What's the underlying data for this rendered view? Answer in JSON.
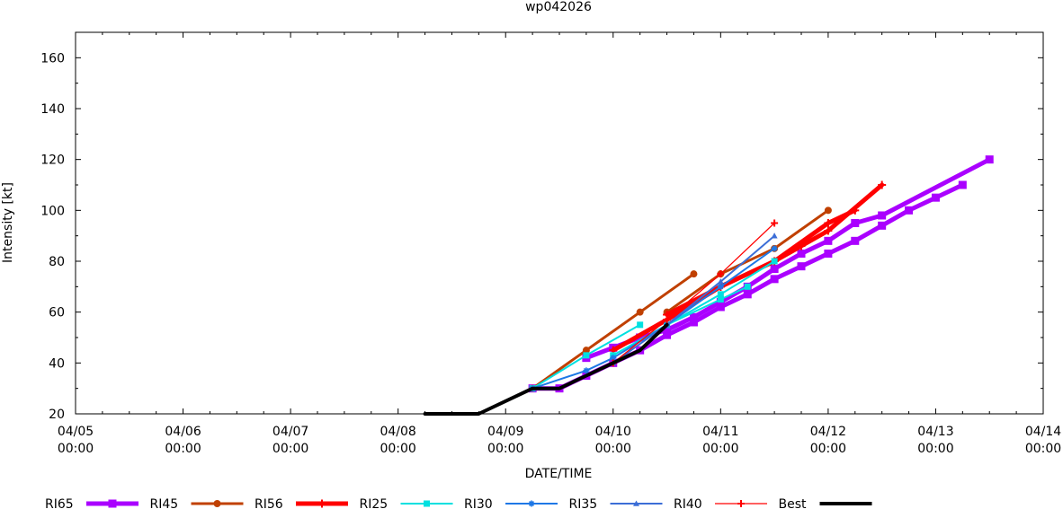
{
  "chart_data": {
    "type": "line",
    "title": "wp042026",
    "xlabel": "DATE/TIME",
    "ylabel": "Intensity [kt]",
    "grid": false,
    "legend_position": "bottom",
    "x_unit": "days since 04/05 00:00",
    "xlim": [
      0,
      9
    ],
    "ylim": [
      20,
      170
    ],
    "x_ticks": [
      {
        "x": 0,
        "date": "04/05",
        "time": "00:00"
      },
      {
        "x": 1,
        "date": "04/06",
        "time": "00:00"
      },
      {
        "x": 2,
        "date": "04/07",
        "time": "00:00"
      },
      {
        "x": 3,
        "date": "04/08",
        "time": "00:00"
      },
      {
        "x": 4,
        "date": "04/09",
        "time": "00:00"
      },
      {
        "x": 5,
        "date": "04/10",
        "time": "00:00"
      },
      {
        "x": 6,
        "date": "04/11",
        "time": "00:00"
      },
      {
        "x": 7,
        "date": "04/12",
        "time": "00:00"
      },
      {
        "x": 8,
        "date": "04/13",
        "time": "00:00"
      },
      {
        "x": 9,
        "date": "04/14",
        "time": "00:00"
      }
    ],
    "y_ticks": [
      20,
      40,
      60,
      80,
      100,
      120,
      140,
      160
    ],
    "series": [
      {
        "name": "RI65",
        "color": "#aa00ff",
        "marker": "square",
        "weight": "heavy",
        "lines": [
          [
            [
              4.25,
              30
            ],
            [
              4.5,
              30
            ],
            [
              4.75,
              35
            ],
            [
              5.0,
              40
            ],
            [
              5.25,
              45
            ],
            [
              5.5,
              51
            ],
            [
              5.75,
              56
            ],
            [
              6.0,
              62
            ],
            [
              6.25,
              67
            ],
            [
              6.5,
              73
            ],
            [
              6.75,
              78
            ],
            [
              7.0,
              83
            ],
            [
              7.25,
              88
            ],
            [
              7.5,
              94
            ],
            [
              7.75,
              100
            ],
            [
              8.0,
              105
            ],
            [
              8.25,
              110
            ]
          ],
          [
            [
              4.75,
              42
            ],
            [
              5.0,
              46
            ],
            [
              5.25,
              50
            ],
            [
              5.5,
              53
            ],
            [
              5.75,
              58
            ],
            [
              6.0,
              64
            ],
            [
              6.25,
              70
            ],
            [
              6.5,
              77
            ],
            [
              6.75,
              83
            ],
            [
              7.0,
              88
            ],
            [
              7.25,
              95
            ],
            [
              7.5,
              98
            ],
            [
              8.5,
              120
            ]
          ]
        ]
      },
      {
        "name": "RI45",
        "color": "#c04000",
        "marker": "circle",
        "weight": "medium",
        "lines": [
          [
            [
              4.25,
              30
            ],
            [
              4.75,
              45
            ],
            [
              5.25,
              60
            ],
            [
              5.75,
              75
            ]
          ],
          [
            [
              5.5,
              60
            ],
            [
              6.0,
              75
            ],
            [
              6.5,
              85
            ],
            [
              7.0,
              100
            ]
          ]
        ]
      },
      {
        "name": "RI56",
        "color": "#ff0000",
        "marker": "plus",
        "weight": "heavy",
        "lines": [
          [
            [
              5.0,
              45
            ],
            [
              5.5,
              57
            ],
            [
              6.0,
              70
            ],
            [
              6.5,
              80
            ],
            [
              7.0,
              95
            ],
            [
              7.25,
              100
            ]
          ],
          [
            [
              5.5,
              59
            ],
            [
              6.0,
              70
            ],
            [
              6.5,
              80
            ],
            [
              6.75,
              86
            ],
            [
              7.0,
              92
            ],
            [
              7.5,
              110
            ]
          ]
        ]
      },
      {
        "name": "RI25",
        "color": "#00e0e0",
        "marker": "square",
        "weight": "light",
        "lines": [
          [
            [
              4.25,
              30
            ],
            [
              4.75,
              43
            ],
            [
              5.25,
              55
            ]
          ],
          [
            [
              5.0,
              43
            ],
            [
              5.5,
              55
            ],
            [
              6.0,
              65
            ],
            [
              6.25,
              70
            ]
          ],
          [
            [
              5.5,
              55
            ],
            [
              6.0,
              67
            ],
            [
              6.5,
              80
            ]
          ]
        ]
      },
      {
        "name": "RI30",
        "color": "#1e78e6",
        "marker": "star",
        "weight": "light",
        "lines": [
          [
            [
              4.25,
              30
            ],
            [
              4.75,
              37
            ],
            [
              5.0,
              42
            ],
            [
              5.5,
              55
            ],
            [
              6.0,
              70
            ],
            [
              6.5,
              85
            ]
          ]
        ]
      },
      {
        "name": "RI35",
        "color": "#3c6ed7",
        "marker": "triangle",
        "weight": "light",
        "lines": [
          [
            [
              5.0,
              40
            ],
            [
              5.5,
              55
            ],
            [
              6.0,
              72
            ],
            [
              6.5,
              90
            ]
          ]
        ]
      },
      {
        "name": "RI40",
        "color": "#ff0000",
        "marker": "plus",
        "weight": "thin",
        "lines": [
          [
            [
              5.0,
              40
            ],
            [
              5.5,
              57
            ],
            [
              6.0,
              75
            ],
            [
              6.5,
              95
            ]
          ]
        ]
      },
      {
        "name": "Best",
        "color": "#000000",
        "marker": "none",
        "weight": "best",
        "lines": [
          [
            [
              3.25,
              20
            ],
            [
              3.75,
              20
            ],
            [
              4.25,
              30
            ],
            [
              4.5,
              30
            ],
            [
              4.75,
              35
            ],
            [
              5.0,
              40
            ],
            [
              5.25,
              45
            ],
            [
              5.5,
              55
            ]
          ]
        ]
      }
    ]
  }
}
